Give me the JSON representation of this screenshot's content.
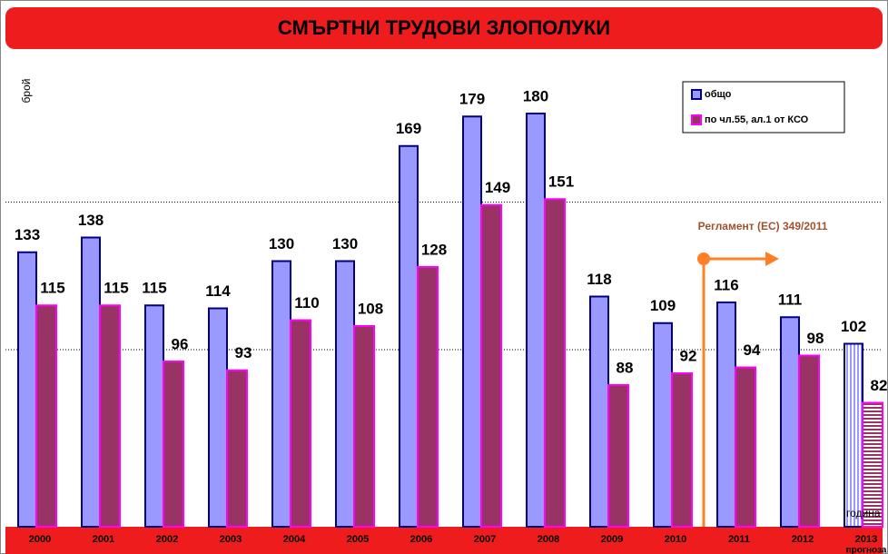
{
  "chart_data": {
    "type": "bar",
    "title": "СМЪРТНИ ТРУДОВИ ЗЛОПОЛУКИ",
    "y_label": "брой",
    "x_label": "година",
    "categories": [
      "2000",
      "2001",
      "2002",
      "2003",
      "2004",
      "2005",
      "2006",
      "2007",
      "2008",
      "2009",
      "2010",
      "2011",
      "2012",
      "2013"
    ],
    "forecast_label": "прогноза",
    "forecast_category_index": 13,
    "series": [
      {
        "name": "общо",
        "color": "#9999ff",
        "border": "#000080",
        "values": [
          133,
          138,
          115,
          114,
          130,
          130,
          169,
          179,
          180,
          118,
          109,
          116,
          111,
          102
        ]
      },
      {
        "name": "по чл.55, ал.1 от КСО",
        "color": "#993366",
        "border": "#ff00ff",
        "values": [
          115,
          115,
          96,
          93,
          110,
          108,
          128,
          149,
          151,
          88,
          92,
          94,
          98,
          82
        ]
      }
    ],
    "ylim": [
      40,
      200
    ],
    "gridlines": [
      100,
      150
    ],
    "annotation": "Регламент (ЕС) 349/2011"
  }
}
